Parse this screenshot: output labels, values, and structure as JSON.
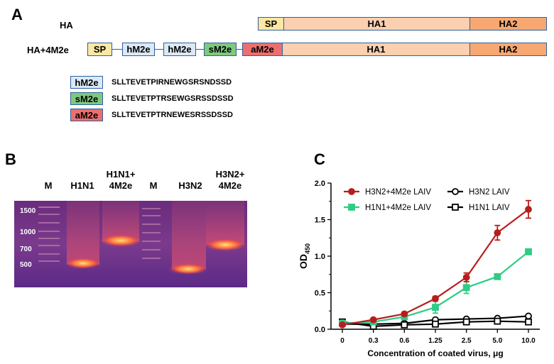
{
  "panelA": {
    "letter": "A",
    "rows": [
      {
        "label": "HA",
        "segments": [
          "SP",
          "HA1",
          "HA2"
        ]
      },
      {
        "label": "HA+4M2e",
        "segments": [
          "SP",
          "hM2e",
          "hM2e",
          "sM2e",
          "aM2e",
          "HA1",
          "HA2"
        ]
      }
    ],
    "legend": [
      {
        "tag": "hM2e",
        "sequence": "SLLTEVETPIRNEWGSRSNDSSD",
        "color": "#dbe9f7"
      },
      {
        "tag": "sM2e",
        "sequence": "SLLTEVETPTRSEWGSRSSDSSD",
        "color": "#7fc97f"
      },
      {
        "tag": "aM2e",
        "sequence": "SLLTEVETPTRNEWESRSSDSSD",
        "color": "#ec6f6f"
      }
    ],
    "colors": {
      "SP": "#fbe8a4",
      "HA1": "#fbd0b0",
      "HA2": "#f7a872",
      "border": "#2f5f9e"
    }
  },
  "panelB": {
    "letter": "B",
    "lanes": [
      {
        "label": "M"
      },
      {
        "label": "H1N1"
      },
      {
        "label": "H1N1+ 4M2e"
      },
      {
        "label": "M"
      },
      {
        "label": "H3N2"
      },
      {
        "label": "H3N2+ 4M2e"
      }
    ],
    "marker_sizes": [
      "1500",
      "1000",
      "700",
      "500"
    ]
  },
  "panelC": {
    "letter": "C",
    "chart_data": {
      "type": "line",
      "xlabel": "Concentration of coated virus, μg",
      "ylabel": "OD450",
      "categories": [
        "0",
        "0.3",
        "0.6",
        "1.25",
        "2.5",
        "5.0",
        "10.0"
      ],
      "ylim": [
        0,
        2.0
      ],
      "yticks": [
        "0.0",
        "0.5",
        "1.0",
        "1.5",
        "2.0"
      ],
      "legend_position": "top",
      "series": [
        {
          "name": "H3N2+4M2e LAIV",
          "color": "#b81d1d",
          "marker": "filled-circle",
          "values": [
            0.06,
            0.13,
            0.21,
            0.42,
            0.71,
            1.32,
            1.64
          ],
          "errors": [
            0.01,
            0.01,
            0.02,
            0.03,
            0.06,
            0.1,
            0.12
          ]
        },
        {
          "name": "H1N1+4M2e LAIV",
          "color": "#2ecc84",
          "marker": "filled-square",
          "values": [
            0.08,
            0.1,
            0.17,
            0.3,
            0.57,
            0.72,
            1.06
          ],
          "errors": [
            0.01,
            0.01,
            0.02,
            0.08,
            0.08,
            0.02,
            0.02
          ]
        },
        {
          "name": "H3N2 LAIV",
          "color": "#000000",
          "marker": "open-circle",
          "values": [
            0.07,
            0.07,
            0.08,
            0.13,
            0.14,
            0.15,
            0.18
          ],
          "errors": [
            0,
            0,
            0,
            0,
            0,
            0,
            0
          ]
        },
        {
          "name": "H1N1 LAIV",
          "color": "#000000",
          "marker": "open-square",
          "values": [
            0.1,
            0.04,
            0.06,
            0.07,
            0.1,
            0.11,
            0.1
          ],
          "errors": [
            0,
            0,
            0,
            0,
            0,
            0,
            0
          ]
        }
      ]
    }
  }
}
